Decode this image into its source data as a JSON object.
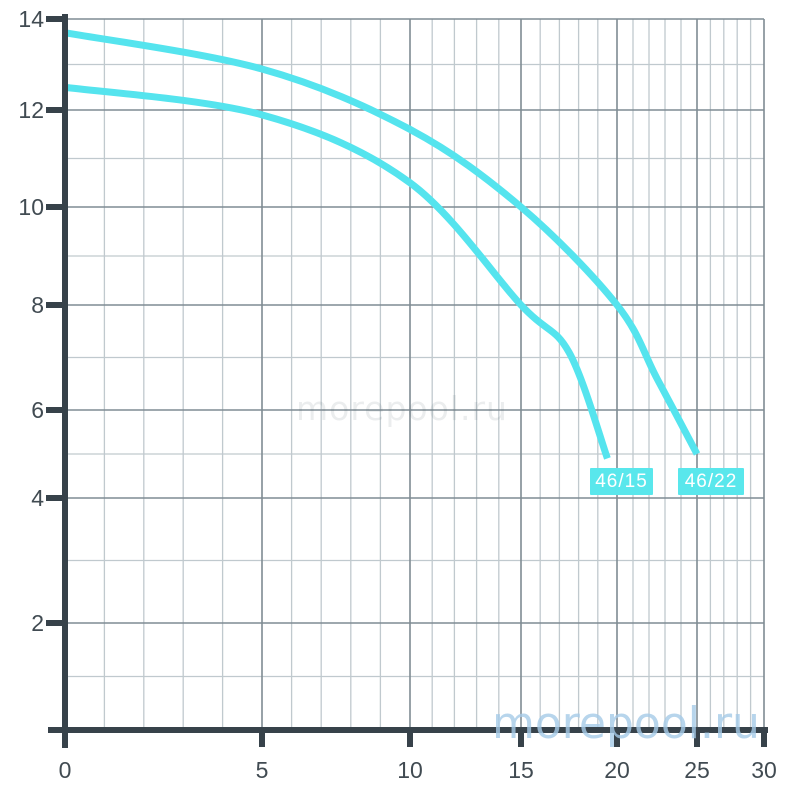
{
  "chart_data": {
    "type": "line",
    "title": "",
    "xlabel": "",
    "ylabel": "",
    "xlim": [
      0,
      30
    ],
    "ylim": [
      0,
      14
    ],
    "x_ticks": [
      0,
      5,
      10,
      15,
      20,
      25,
      30
    ],
    "y_ticks": [
      14,
      12,
      10,
      8,
      6,
      4,
      2
    ],
    "grid": "major and minor, on",
    "legend_position": "labels at curve ends",
    "axis_note": "x axis spacing is non-linear, compressed toward the right",
    "series": [
      {
        "name": "46/15",
        "color": "#55e4ee",
        "points": [
          [
            0,
            12.5
          ],
          [
            5,
            11.9
          ],
          [
            10,
            10.5
          ],
          [
            15,
            8.0
          ],
          [
            17.5,
            7.1
          ],
          [
            19.5,
            4.9
          ]
        ]
      },
      {
        "name": "46/22",
        "color": "#55e4ee",
        "points": [
          [
            0,
            13.7
          ],
          [
            5,
            12.9
          ],
          [
            10,
            11.6
          ],
          [
            15,
            10.0
          ],
          [
            20,
            8.0
          ],
          [
            22.5,
            6.6
          ],
          [
            25,
            5.0
          ]
        ]
      }
    ]
  },
  "series_chips": {
    "bg": "#59e7ec",
    "text_color": "#ffffff"
  },
  "watermark": {
    "text": "morepool.ru",
    "color": "#a6cbe8"
  },
  "watermark_faint": {
    "text": "morepool.ru"
  },
  "colors": {
    "background": "#ffffff",
    "axis": "#37424a",
    "tick_text": "#414b52",
    "grid_major": "#7f8b93",
    "grid_minor": "#c0c9ce",
    "curve": "#55e4ee"
  }
}
